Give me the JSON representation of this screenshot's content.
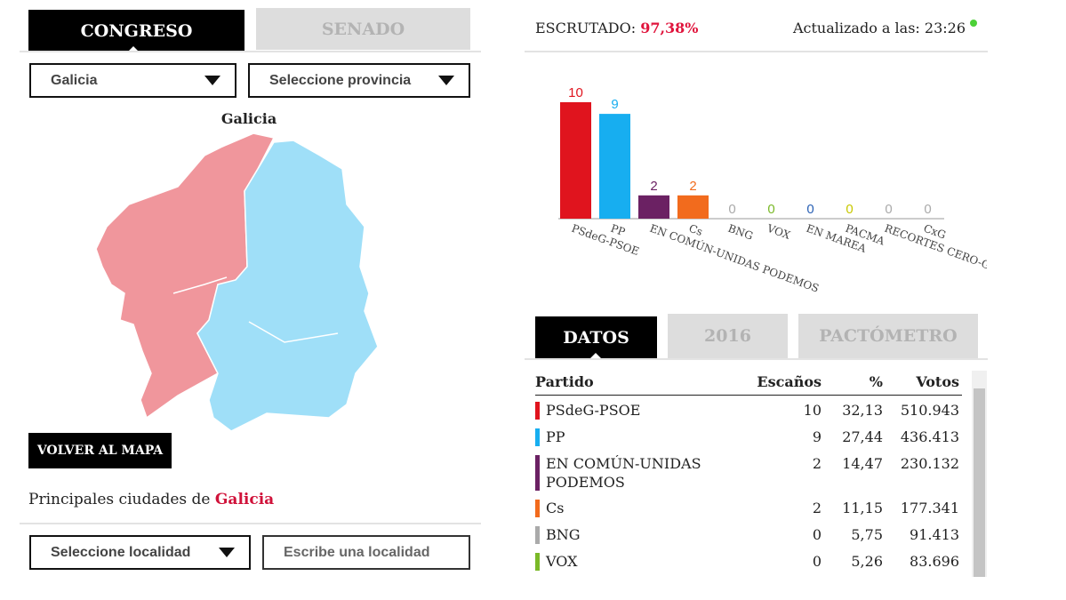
{
  "tabs": {
    "items": [
      "CONGRESO",
      "SENADO"
    ]
  },
  "filters": {
    "region": "Galicia",
    "province": "Seleccione provincia"
  },
  "map": {
    "title": "Galicia",
    "back_button": "VOLVER AL MAPA"
  },
  "cities": {
    "label": "Principales ciudades de",
    "region": "Galicia",
    "locality_select": "Seleccione localidad",
    "locality_input": "Escribe una localidad"
  },
  "status": {
    "label": "ESCRUTADO:",
    "value": "97,38%",
    "updated": "Actualizado a las: 23:26"
  },
  "chart_data": {
    "type": "bar",
    "categories": [
      "PSdeG-PSOE",
      "PP",
      "EN COMÚN-UNIDAS PODEMOS",
      "Cs",
      "BNG",
      "VOX",
      "EN MAREA",
      "PACMA",
      "RECORTES CERO-GV",
      "CxG"
    ],
    "values": [
      10,
      9,
      2,
      2,
      0,
      0,
      0,
      0,
      0,
      0
    ],
    "colors": [
      "#e0141e",
      "#17aef0",
      "#6b2163",
      "#f26b1d",
      "#aaaaaa",
      "#7ab928",
      "#2b62b5",
      "#c8c800",
      "#aaaaaa",
      "#aaaaaa"
    ]
  },
  "data_tabs": {
    "items": [
      "DATOS",
      "2016",
      "PACTÓMETRO"
    ]
  },
  "table": {
    "columns": [
      "Partido",
      "Escaños",
      "%",
      "Votos"
    ],
    "rows": [
      {
        "party": "PSdeG-PSOE",
        "seats": 10,
        "percent": "32,13",
        "votes": "510.943",
        "color": "#e0141e"
      },
      {
        "party": "PP",
        "seats": 9,
        "percent": "27,44",
        "votes": "436.413",
        "color": "#17aef0"
      },
      {
        "party": "EN COMÚN-UNIDAS PODEMOS",
        "seats": 2,
        "percent": "14,47",
        "votes": "230.132",
        "color": "#6b2163"
      },
      {
        "party": "Cs",
        "seats": 2,
        "percent": "11,15",
        "votes": "177.341",
        "color": "#f26b1d"
      },
      {
        "party": "BNG",
        "seats": 0,
        "percent": "5,75",
        "votes": "91.413",
        "color": "#aaaaaa"
      },
      {
        "party": "VOX",
        "seats": 0,
        "percent": "5,26",
        "votes": "83.696",
        "color": "#7ab928"
      }
    ]
  }
}
